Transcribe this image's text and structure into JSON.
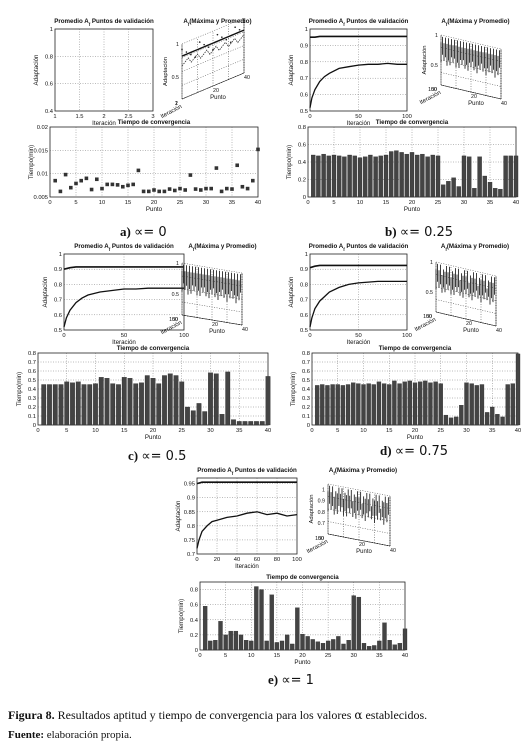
{
  "panels": [
    {
      "id": "a",
      "caption_letter": "a)",
      "caption_alpha": "∝= 0",
      "top_left": {
        "title": "Promedio A",
        "title_sub": "f",
        "title_rest": " Puntos de validación",
        "ylabel": "Adaptación",
        "xlabel": "Iteración",
        "yticks": [
          "0.4",
          "0.6",
          "0.8",
          "1"
        ],
        "xticks": [
          "1",
          "1.5",
          "2",
          "2.5",
          "3"
        ]
      },
      "top_right": {
        "title": "A",
        "title_sub": "f",
        "title_rest": "(Máxima y Promedio)",
        "zlabel": "Adaptación",
        "xlabel": "Iteración",
        "ylabel": "Punto",
        "zticks": [
          "0.5",
          "1"
        ],
        "xticks": [
          "2",
          "1"
        ],
        "yticks": [
          "20",
          "40"
        ]
      },
      "bottom": {
        "title": "Tiempo de convergencia",
        "ylabel": "Tiempo(min)",
        "xlabel": "Punto",
        "yticks": [
          "0.005",
          "0.01",
          "0.015",
          "0.02"
        ],
        "xticks": [
          "0",
          "5",
          "10",
          "15",
          "20",
          "25",
          "30",
          "35",
          "40"
        ]
      }
    },
    {
      "id": "b",
      "caption_letter": "b)",
      "caption_alpha": "∝= 0.25",
      "top_left": {
        "title": "Promedio A",
        "title_sub": "f",
        "title_rest": " Puntos de validación",
        "ylabel": "Adaptación",
        "xlabel": "Iteración",
        "yticks": [
          "0.5",
          "0.6",
          "0.7",
          "0.8",
          "0.9",
          "1"
        ],
        "xticks": [
          "0",
          "50",
          "100"
        ]
      },
      "top_right": {
        "title": "A",
        "title_sub": "f",
        "title_rest": "(Máxima y Promedio)",
        "zlabel": "Adaptación",
        "xlabel": "Iteración",
        "ylabel": "Punto",
        "zticks": [
          "0.5",
          "1"
        ],
        "xticks": [
          "100",
          "50"
        ],
        "yticks": [
          "20",
          "40"
        ]
      },
      "bottom": {
        "title": "Tiempo de convergencia",
        "ylabel": "Tiempo(min)",
        "xlabel": "Punto",
        "yticks": [
          "0",
          "0.2",
          "0.4",
          "0.6",
          "0.8"
        ],
        "xticks": [
          "0",
          "5",
          "10",
          "15",
          "20",
          "25",
          "30",
          "35",
          "40"
        ]
      }
    },
    {
      "id": "c",
      "caption_letter": "c)",
      "caption_alpha": "∝= 0.5",
      "top_left": {
        "title": "Promedio A",
        "title_sub": "f",
        "title_rest": " Puntos de validación",
        "ylabel": "Adaptación",
        "xlabel": "Iteración",
        "yticks": [
          "0.5",
          "0.6",
          "0.7",
          "0.8",
          "0.9",
          "1"
        ],
        "xticks": [
          "0",
          "50",
          "100"
        ]
      },
      "top_right": {
        "title": "A",
        "title_sub": "f",
        "title_rest": "(Máxima y Promedio)",
        "zlabel": "",
        "xlabel": "Iteración",
        "ylabel": "Punto",
        "zticks": [
          "0.5",
          "1"
        ],
        "xticks": [
          "100",
          "50"
        ],
        "yticks": [
          "20",
          "40"
        ]
      },
      "bottom": {
        "title": "Tiempo de convergencia",
        "ylabel": "Tiempo(min)",
        "xlabel": "Punto",
        "yticks": [
          "0",
          "0.1",
          "0.2",
          "0.3",
          "0.4",
          "0.5",
          "0.6",
          "0.7",
          "0.8"
        ],
        "xticks": [
          "0",
          "5",
          "10",
          "15",
          "20",
          "25",
          "30",
          "35",
          "40"
        ]
      }
    },
    {
      "id": "d",
      "caption_letter": "d)",
      "caption_alpha": "∝= 0.75",
      "top_left": {
        "title": "Promedio A",
        "title_sub": "f",
        "title_rest": " Puntos de validación",
        "ylabel": "Adaptación",
        "xlabel": "Iteración",
        "yticks": [
          "0.5",
          "0.6",
          "0.7",
          "0.8",
          "0.9",
          "1"
        ],
        "xticks": [
          "0",
          "50",
          "100"
        ]
      },
      "top_right": {
        "title": "A",
        "title_sub": "f",
        "title_rest": "(Máxima y Promedio)",
        "zlabel": "",
        "xlabel": "Iteración",
        "ylabel": "Punto",
        "zticks": [
          "0.5",
          "1"
        ],
        "xticks": [
          "100",
          "50"
        ],
        "yticks": [
          "20",
          "40"
        ]
      },
      "bottom": {
        "title": "Tiempo de convergencia",
        "ylabel": "Tiempo(min)",
        "xlabel": "Punto",
        "yticks": [
          "0",
          "0.1",
          "0.2",
          "0.3",
          "0.4",
          "0.5",
          "0.6",
          "0.7",
          "0.8"
        ],
        "xticks": [
          "0",
          "5",
          "10",
          "15",
          "20",
          "25",
          "30",
          "35",
          "40"
        ]
      }
    },
    {
      "id": "e",
      "caption_letter": "e)",
      "caption_alpha": "∝= 1",
      "top_left": {
        "title": "Promedio A",
        "title_sub": "f",
        "title_rest": " Puntos de validación",
        "ylabel": "Adaptación",
        "xlabel": "Iteración",
        "yticks": [
          "0.7",
          "0.75",
          "0.8",
          "0.85",
          "0.9",
          "0.95"
        ],
        "xticks": [
          "0",
          "20",
          "40",
          "60",
          "80",
          "100"
        ]
      },
      "top_right": {
        "title": "A",
        "title_sub": "f",
        "title_rest": "(Máxima y Promedio)",
        "zlabel": "Adaptación",
        "xlabel": "Iteración",
        "ylabel": "Punto",
        "zticks": [
          "0.7",
          "0.8",
          "0.9",
          "1"
        ],
        "xticks": [
          "100",
          "50"
        ],
        "yticks": [
          "20",
          "40"
        ]
      },
      "bottom": {
        "title": "Tiempo de convergencia",
        "ylabel": "Tiempo(min)",
        "xlabel": "Punto",
        "yticks": [
          "0",
          "0.2",
          "0.4",
          "0.6",
          "0.8"
        ],
        "xticks": [
          "0",
          "5",
          "10",
          "15",
          "20",
          "25",
          "30",
          "35",
          "40"
        ]
      }
    }
  ],
  "chart_data": [
    {
      "panel": "a",
      "type": "line",
      "title": "Promedio Af Puntos de validación",
      "xlabel": "Iteración",
      "ylabel": "Adaptación",
      "xlim": [
        1,
        3
      ],
      "ylim": [
        0.4,
        1
      ],
      "grid": true,
      "series": []
    },
    {
      "panel": "a",
      "type": "scatter",
      "title": "Tiempo de convergencia",
      "xlabel": "Punto",
      "ylabel": "Tiempo(min)",
      "xlim": [
        0,
        40
      ],
      "ylim": [
        0.005,
        0.02
      ],
      "grid": true,
      "x": [
        1,
        2,
        3,
        4,
        5,
        6,
        7,
        8,
        9,
        10,
        11,
        12,
        13,
        14,
        15,
        16,
        17,
        18,
        19,
        20,
        21,
        22,
        23,
        24,
        25,
        26,
        27,
        28,
        29,
        30,
        31,
        32,
        33,
        34,
        35,
        36,
        37,
        38,
        39,
        40
      ],
      "values": [
        0.0085,
        0.0062,
        0.0098,
        0.007,
        0.0079,
        0.0085,
        0.009,
        0.0066,
        0.0088,
        0.0068,
        0.0077,
        0.0077,
        0.0076,
        0.0072,
        0.0075,
        0.0077,
        0.0107,
        0.0062,
        0.0062,
        0.0065,
        0.0062,
        0.0062,
        0.0067,
        0.0064,
        0.0068,
        0.0065,
        0.0097,
        0.0067,
        0.0065,
        0.0068,
        0.0068,
        0.0112,
        0.0062,
        0.0068,
        0.0067,
        0.0118,
        0.0072,
        0.0068,
        0.0085,
        0.0152
      ]
    },
    {
      "panel": "b",
      "type": "line",
      "title": "Promedio Af Puntos de validación",
      "xlabel": "Iteración",
      "ylabel": "Adaptación",
      "xlim": [
        0,
        100
      ],
      "ylim": [
        0.5,
        1
      ],
      "grid": true,
      "series": [
        {
          "values_x": [
            0,
            5,
            10,
            20,
            40,
            60,
            80,
            100
          ],
          "values": [
            0.95,
            0.95,
            0.955,
            0.955,
            0.955,
            0.955,
            0.955,
            0.955
          ]
        },
        {
          "values_x": [
            0,
            2,
            5,
            10,
            15,
            20,
            30,
            40,
            50,
            60,
            70,
            80,
            90,
            100
          ],
          "values": [
            0.52,
            0.58,
            0.63,
            0.68,
            0.71,
            0.73,
            0.76,
            0.77,
            0.78,
            0.785,
            0.785,
            0.79,
            0.785,
            0.785
          ]
        }
      ]
    },
    {
      "panel": "b",
      "type": "bar",
      "title": "Tiempo de convergencia",
      "xlabel": "Punto",
      "ylabel": "Tiempo(min)",
      "xlim": [
        0,
        40
      ],
      "ylim": [
        0,
        0.8
      ],
      "grid": true,
      "x": [
        1,
        2,
        3,
        4,
        5,
        6,
        7,
        8,
        9,
        10,
        11,
        12,
        13,
        14,
        15,
        16,
        17,
        18,
        19,
        20,
        21,
        22,
        23,
        24,
        25,
        26,
        27,
        28,
        29,
        30,
        31,
        32,
        33,
        34,
        35,
        36,
        37,
        38,
        39,
        40
      ],
      "values": [
        0.48,
        0.47,
        0.49,
        0.47,
        0.48,
        0.47,
        0.46,
        0.48,
        0.47,
        0.45,
        0.46,
        0.48,
        0.46,
        0.47,
        0.48,
        0.52,
        0.53,
        0.51,
        0.49,
        0.51,
        0.48,
        0.49,
        0.46,
        0.48,
        0.47,
        0.14,
        0.18,
        0.22,
        0.12,
        0.47,
        0.46,
        0.1,
        0.46,
        0.24,
        0.17,
        0.1,
        0.09,
        0.47,
        0.47,
        0.47
      ]
    },
    {
      "panel": "c",
      "type": "line",
      "title": "Promedio Af Puntos de validación",
      "xlabel": "Iteración",
      "ylabel": "Adaptación",
      "xlim": [
        0,
        100
      ],
      "ylim": [
        0.5,
        1
      ],
      "grid": true,
      "series": [
        {
          "values_x": [
            0,
            5,
            10,
            20,
            40,
            60,
            80,
            100
          ],
          "values": [
            0.9,
            0.91,
            0.915,
            0.915,
            0.915,
            0.915,
            0.915,
            0.915
          ]
        },
        {
          "values_x": [
            0,
            2,
            5,
            10,
            15,
            20,
            30,
            40,
            50,
            60,
            70,
            80,
            90,
            100
          ],
          "values": [
            0.52,
            0.58,
            0.63,
            0.68,
            0.71,
            0.73,
            0.75,
            0.76,
            0.77,
            0.77,
            0.775,
            0.775,
            0.775,
            0.775
          ]
        }
      ]
    },
    {
      "panel": "c",
      "type": "bar",
      "title": "Tiempo de convergencia",
      "xlabel": "Punto",
      "ylabel": "Tiempo(min)",
      "xlim": [
        0,
        40
      ],
      "ylim": [
        0,
        0.8
      ],
      "grid": true,
      "x": [
        1,
        2,
        3,
        4,
        5,
        6,
        7,
        8,
        9,
        10,
        11,
        12,
        13,
        14,
        15,
        16,
        17,
        18,
        19,
        20,
        21,
        22,
        23,
        24,
        25,
        26,
        27,
        28,
        29,
        30,
        31,
        32,
        33,
        34,
        35,
        36,
        37,
        38,
        39,
        40
      ],
      "values": [
        0.45,
        0.45,
        0.45,
        0.45,
        0.48,
        0.47,
        0.48,
        0.45,
        0.45,
        0.46,
        0.53,
        0.52,
        0.46,
        0.45,
        0.53,
        0.52,
        0.46,
        0.47,
        0.55,
        0.52,
        0.46,
        0.55,
        0.57,
        0.55,
        0.48,
        0.2,
        0.16,
        0.24,
        0.15,
        0.58,
        0.57,
        0.12,
        0.59,
        0.06,
        0.04,
        0.04,
        0.04,
        0.04,
        0.04,
        0.54
      ]
    },
    {
      "panel": "d",
      "type": "line",
      "title": "Promedio Af Puntos de validación",
      "xlabel": "Iteración",
      "ylabel": "Adaptación",
      "xlim": [
        0,
        100
      ],
      "ylim": [
        0.5,
        1
      ],
      "grid": true,
      "series": [
        {
          "values_x": [
            0,
            5,
            10,
            20,
            40,
            60,
            80,
            100
          ],
          "values": [
            0.91,
            0.92,
            0.925,
            0.925,
            0.925,
            0.925,
            0.925,
            0.925
          ]
        },
        {
          "values_x": [
            0,
            2,
            5,
            10,
            15,
            20,
            30,
            40,
            50,
            60,
            70,
            80,
            90,
            100
          ],
          "values": [
            0.52,
            0.58,
            0.64,
            0.69,
            0.72,
            0.75,
            0.78,
            0.8,
            0.81,
            0.815,
            0.82,
            0.82,
            0.82,
            0.82
          ]
        }
      ]
    },
    {
      "panel": "d",
      "type": "bar",
      "title": "Tiempo de convergencia",
      "xlabel": "Punto",
      "ylabel": "Tiempo(min)",
      "xlim": [
        0,
        40
      ],
      "ylim": [
        0,
        0.8
      ],
      "grid": true,
      "x": [
        1,
        2,
        3,
        4,
        5,
        6,
        7,
        8,
        9,
        10,
        11,
        12,
        13,
        14,
        15,
        16,
        17,
        18,
        19,
        20,
        21,
        22,
        23,
        24,
        25,
        26,
        27,
        28,
        29,
        30,
        31,
        32,
        33,
        34,
        35,
        36,
        37,
        38,
        39,
        40
      ],
      "values": [
        0.44,
        0.45,
        0.44,
        0.45,
        0.45,
        0.44,
        0.45,
        0.47,
        0.46,
        0.45,
        0.46,
        0.45,
        0.48,
        0.46,
        0.45,
        0.49,
        0.46,
        0.48,
        0.49,
        0.47,
        0.48,
        0.49,
        0.47,
        0.48,
        0.46,
        0.11,
        0.08,
        0.09,
        0.22,
        0.47,
        0.46,
        0.44,
        0.45,
        0.14,
        0.2,
        0.12,
        0.09,
        0.45,
        0.46,
        0.79
      ]
    },
    {
      "panel": "e",
      "type": "line",
      "title": "Promedio Af Puntos de validación",
      "xlabel": "Iteración",
      "ylabel": "Adaptación",
      "xlim": [
        0,
        100
      ],
      "ylim": [
        0.7,
        0.97
      ],
      "grid": true,
      "series": [
        {
          "values_x": [
            0,
            5,
            10,
            20,
            40,
            60,
            80,
            100
          ],
          "values": [
            0.95,
            0.955,
            0.955,
            0.955,
            0.955,
            0.955,
            0.955,
            0.955
          ]
        },
        {
          "values_x": [
            0,
            2,
            5,
            10,
            15,
            20,
            30,
            40,
            50,
            60,
            70,
            80,
            90,
            100
          ],
          "values": [
            0.72,
            0.75,
            0.78,
            0.8,
            0.815,
            0.82,
            0.83,
            0.835,
            0.845,
            0.85,
            0.84,
            0.845,
            0.835,
            0.84
          ]
        }
      ]
    },
    {
      "panel": "e",
      "type": "bar",
      "title": "Tiempo de convergencia",
      "xlabel": "Punto",
      "ylabel": "Tiempo(min)",
      "xlim": [
        0,
        40
      ],
      "ylim": [
        0,
        0.9
      ],
      "grid": true,
      "x": [
        1,
        2,
        3,
        4,
        5,
        6,
        7,
        8,
        9,
        10,
        11,
        12,
        13,
        14,
        15,
        16,
        17,
        18,
        19,
        20,
        21,
        22,
        23,
        24,
        25,
        26,
        27,
        28,
        29,
        30,
        31,
        32,
        33,
        34,
        35,
        36,
        37,
        38,
        39,
        40
      ],
      "values": [
        0.58,
        0.12,
        0.13,
        0.38,
        0.2,
        0.25,
        0.25,
        0.2,
        0.13,
        0.12,
        0.84,
        0.8,
        0.12,
        0.73,
        0.1,
        0.12,
        0.2,
        0.08,
        0.56,
        0.21,
        0.18,
        0.14,
        0.11,
        0.09,
        0.12,
        0.14,
        0.18,
        0.08,
        0.13,
        0.72,
        0.7,
        0.09,
        0.05,
        0.06,
        0.12,
        0.36,
        0.13,
        0.07,
        0.09,
        0.28
      ]
    }
  ],
  "caption": {
    "label": "Figura 8.",
    "text": " Resultados aptitud y tiempo de convergencia para los valores ",
    "alpha": "α",
    "text_end": " establecidos."
  },
  "source": {
    "label": "Fuente:",
    "text": " elaboración propia."
  }
}
